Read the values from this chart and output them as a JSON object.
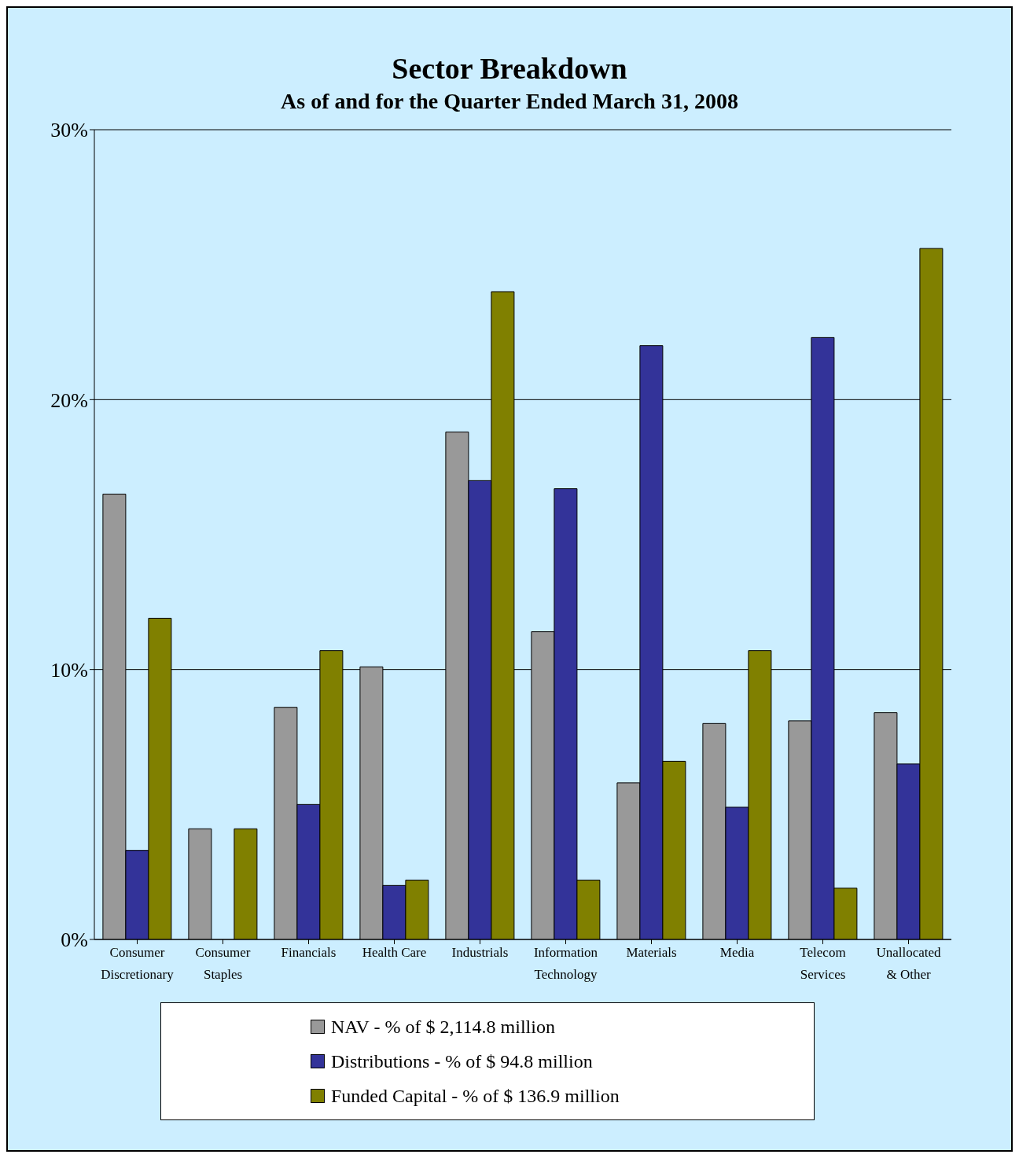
{
  "chart_data": {
    "type": "bar",
    "title": "Sector Breakdown",
    "subtitle": "As of and for the Quarter Ended March 31, 2008",
    "categories": [
      "Consumer Discretionary",
      "Consumer Staples",
      "Financials",
      "Health Care",
      "Industrials",
      "Information Technology",
      "Materials",
      "Media",
      "Telecom Services",
      "Unallocated & Other"
    ],
    "series": [
      {
        "name": "NAV - % of $ 2,114.8 million",
        "color": "#999999",
        "values": [
          16.5,
          4.1,
          8.6,
          10.1,
          18.8,
          11.4,
          5.8,
          8.0,
          8.1,
          8.4
        ]
      },
      {
        "name": "Distributions - % of $ 94.8 million",
        "color": "#333399",
        "values": [
          3.3,
          0,
          5.0,
          2.0,
          17.0,
          16.7,
          22.0,
          4.9,
          22.3,
          6.5
        ]
      },
      {
        "name": "Funded Capital - % of $ 136.9 million",
        "color": "#808000",
        "values": [
          11.9,
          4.1,
          10.7,
          2.2,
          24.0,
          2.2,
          6.6,
          10.7,
          1.9,
          25.6
        ]
      }
    ],
    "ylim": [
      0,
      30
    ],
    "yticks": [
      {
        "value": 0,
        "label": "0%"
      },
      {
        "value": 10,
        "label": "10%"
      },
      {
        "value": 20,
        "label": "20%"
      },
      {
        "value": 30,
        "label": "30%"
      }
    ],
    "grid": "y",
    "legend": "bottom"
  }
}
